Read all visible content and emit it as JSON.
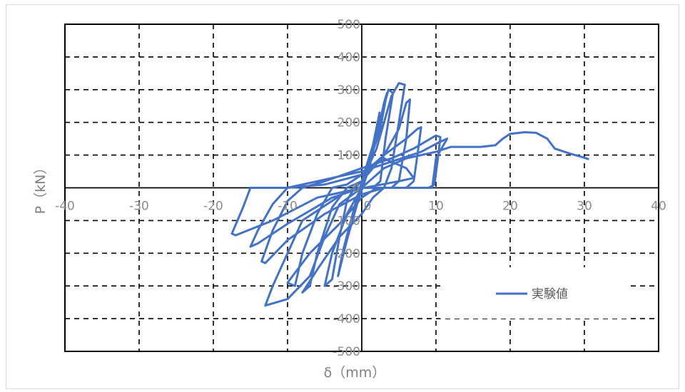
{
  "chart_data": {
    "type": "line",
    "title": "",
    "xlabel": "δ（mm）",
    "ylabel": "P（kN）",
    "xlim": [
      -40,
      40
    ],
    "ylim": [
      -500,
      500
    ],
    "x_ticks": [
      -40,
      -30,
      -20,
      -10,
      0,
      10,
      20,
      30,
      40
    ],
    "y_ticks": [
      -500,
      -400,
      -300,
      -200,
      -100,
      0,
      100,
      200,
      300,
      400,
      500
    ],
    "grid": true,
    "grid_style": "dashed",
    "legend_position": "bottom-right",
    "series": [
      {
        "name": "実験値",
        "color": "#4472C4",
        "points": [
          [
            0,
            0
          ],
          [
            1,
            80
          ],
          [
            2,
            180
          ],
          [
            2.4,
            230
          ],
          [
            1.5,
            130
          ],
          [
            0,
            20
          ],
          [
            -1,
            -70
          ],
          [
            -2,
            -160
          ],
          [
            -2.5,
            -200
          ],
          [
            -1.5,
            -110
          ],
          [
            0,
            0
          ],
          [
            2,
            150
          ],
          [
            3,
            260
          ],
          [
            3.4,
            290
          ],
          [
            2.4,
            170
          ],
          [
            0.5,
            50
          ],
          [
            -1,
            -60
          ],
          [
            -2.5,
            -190
          ],
          [
            -3.2,
            -270
          ],
          [
            -2,
            -160
          ],
          [
            -0.5,
            -40
          ],
          [
            1,
            60
          ],
          [
            2.5,
            210
          ],
          [
            3.6,
            300
          ],
          [
            4.2,
            290
          ],
          [
            3.2,
            150
          ],
          [
            2.5,
            20
          ],
          [
            1.5,
            0
          ],
          [
            0,
            0
          ],
          [
            -2,
            -80
          ],
          [
            -4,
            -200
          ],
          [
            -5,
            -300
          ],
          [
            -4,
            -280
          ],
          [
            -3,
            -150
          ],
          [
            -2,
            -40
          ],
          [
            -1,
            0
          ],
          [
            0,
            20
          ],
          [
            2,
            120
          ],
          [
            4,
            280
          ],
          [
            5,
            320
          ],
          [
            5.8,
            315
          ],
          [
            5,
            200
          ],
          [
            4,
            60
          ],
          [
            3,
            0
          ],
          [
            1.5,
            -30
          ],
          [
            0,
            -80
          ],
          [
            -3,
            -150
          ],
          [
            -6,
            -250
          ],
          [
            -8,
            -320
          ],
          [
            -7,
            -300
          ],
          [
            -6,
            -200
          ],
          [
            -4,
            -60
          ],
          [
            -2,
            0
          ],
          [
            0,
            20
          ],
          [
            3,
            100
          ],
          [
            5,
            180
          ],
          [
            6,
            260
          ],
          [
            6.5,
            270
          ],
          [
            6,
            150
          ],
          [
            5,
            20
          ],
          [
            4,
            0
          ],
          [
            2,
            0
          ],
          [
            0,
            -30
          ],
          [
            -3,
            -110
          ],
          [
            -7,
            -200
          ],
          [
            -10,
            -290
          ],
          [
            -9,
            -300
          ],
          [
            -8,
            -200
          ],
          [
            -6,
            -80
          ],
          [
            -4,
            0
          ],
          [
            -2,
            10
          ],
          [
            0,
            40
          ],
          [
            3,
            100
          ],
          [
            6,
            150
          ],
          [
            7.5,
            180
          ],
          [
            8,
            185
          ],
          [
            7.5,
            100
          ],
          [
            7,
            20
          ],
          [
            6,
            0
          ],
          [
            3,
            0
          ],
          [
            0,
            -20
          ],
          [
            -5,
            -80
          ],
          [
            -10,
            -160
          ],
          [
            -13,
            -230
          ],
          [
            -13.5,
            -225
          ],
          [
            -12,
            -130
          ],
          [
            -10,
            -40
          ],
          [
            -8,
            0
          ],
          [
            -5,
            20
          ],
          [
            0,
            60
          ],
          [
            4,
            90
          ],
          [
            7,
            120
          ],
          [
            10,
            160
          ],
          [
            10.6,
            155
          ],
          [
            10.2,
            80
          ],
          [
            9.8,
            10
          ],
          [
            9,
            0
          ],
          [
            5,
            0
          ],
          [
            0,
            0
          ],
          [
            -4,
            -30
          ],
          [
            -10,
            -110
          ],
          [
            -14,
            -170
          ],
          [
            -15,
            -180
          ],
          [
            -14,
            -130
          ],
          [
            -12,
            -50
          ],
          [
            -10,
            0
          ],
          [
            -6,
            20
          ],
          [
            0,
            50
          ],
          [
            4,
            80
          ],
          [
            8,
            110
          ],
          [
            10.5,
            140
          ],
          [
            11.5,
            150
          ],
          [
            10,
            90
          ],
          [
            9.5,
            0
          ],
          [
            6,
            0
          ],
          [
            0,
            0
          ],
          [
            -6,
            -30
          ],
          [
            -12,
            -100
          ],
          [
            -17,
            -145
          ],
          [
            -17.5,
            -140
          ],
          [
            -16,
            -60
          ],
          [
            -15,
            0
          ],
          [
            -10,
            0
          ],
          [
            -5,
            10
          ],
          [
            0,
            40
          ],
          [
            3,
            90
          ],
          [
            6,
            60
          ],
          [
            7,
            30
          ],
          [
            5,
            20
          ],
          [
            -2,
            -10
          ],
          [
            -8,
            -100
          ],
          [
            -12,
            -300
          ],
          [
            -13,
            -360
          ],
          [
            -10,
            -340
          ],
          [
            -7,
            -270
          ],
          [
            -5,
            -150
          ],
          [
            -3,
            -50
          ],
          [
            0,
            0
          ],
          [
            3,
            60
          ],
          [
            6,
            90
          ],
          [
            10,
            110
          ],
          [
            12,
            125
          ],
          [
            16,
            125
          ],
          [
            18,
            130
          ],
          [
            19,
            150
          ],
          [
            20,
            165
          ],
          [
            22,
            170
          ],
          [
            23.5,
            168
          ],
          [
            25,
            150
          ],
          [
            26,
            120
          ],
          [
            28,
            105
          ],
          [
            30,
            92
          ],
          [
            30.5,
            88
          ]
        ]
      }
    ]
  }
}
